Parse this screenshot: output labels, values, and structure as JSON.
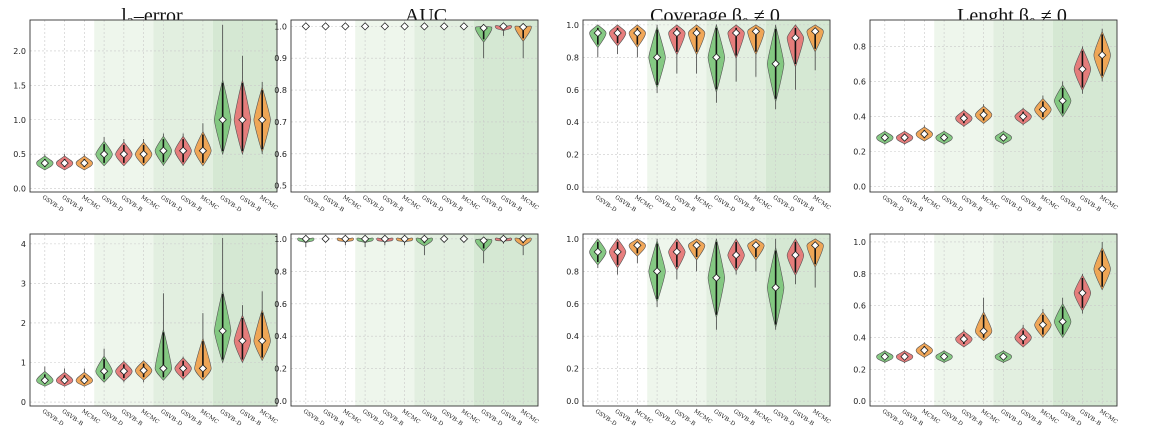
{
  "titles": [
    "l₂–error",
    "AUC",
    "Coverage β₀ ≠ 0",
    "Lenght β₀ ≠ 0"
  ],
  "colors": {
    "GSVB-D": "#7cc47a",
    "GSVB-B": "#e57373",
    "MCMC": "#f0a04b",
    "median": "#ffffff",
    "bg1": "#eef6ec",
    "bg2": "#e2efe0",
    "bg3": "#d5e8d3"
  },
  "chart_data": [
    {
      "type": "violin",
      "row": 0,
      "col": 0,
      "title": "l₂–error",
      "categories": [
        "GSVB–D",
        "GSVB–B",
        "MCMC",
        "GSVB–D",
        "GSVB–B",
        "MCMC",
        "GSVB–D",
        "GSVB–B",
        "MCMC",
        "GSVB–D",
        "GSVB–B",
        "MCMC"
      ],
      "yticks": [
        "0.0",
        "0.5",
        "1.0",
        "1.5",
        "2.0"
      ],
      "ylim": [
        -0.05,
        2.45
      ],
      "medians": [
        0.37,
        0.37,
        0.37,
        0.5,
        0.5,
        0.5,
        0.55,
        0.55,
        0.55,
        1.0,
        1.0,
        1.0
      ],
      "mins": [
        0.27,
        0.27,
        0.27,
        0.33,
        0.33,
        0.33,
        0.33,
        0.33,
        0.33,
        0.5,
        0.5,
        0.5
      ],
      "maxs": [
        0.5,
        0.5,
        0.5,
        0.75,
        0.72,
        0.72,
        0.8,
        0.8,
        0.95,
        2.38,
        1.93,
        1.55
      ]
    },
    {
      "type": "violin",
      "row": 0,
      "col": 1,
      "title": "AUC",
      "categories": [
        "GSVB–D",
        "GSVB–B",
        "MCMC",
        "GSVB–D",
        "GSVB–B",
        "MCMC",
        "GSVB–D",
        "GSVB–B",
        "MCMC",
        "GSVB–D",
        "GSVB–B",
        "MCMC"
      ],
      "yticks": [
        "0.5",
        "0.6",
        "0.7",
        "0.8",
        "0.9",
        "1.0"
      ],
      "ylim": [
        0.48,
        1.02
      ],
      "medians": [
        1.0,
        1.0,
        1.0,
        1.0,
        1.0,
        1.0,
        1.0,
        1.0,
        1.0,
        0.995,
        1.0,
        0.998
      ],
      "mins": [
        0.995,
        0.995,
        0.995,
        0.995,
        0.995,
        0.995,
        0.995,
        0.995,
        0.995,
        0.9,
        0.97,
        0.9
      ],
      "maxs": [
        1.0,
        1.0,
        1.0,
        1.0,
        1.0,
        1.0,
        1.0,
        1.0,
        1.0,
        1.0,
        1.0,
        1.0
      ]
    },
    {
      "type": "violin",
      "row": 0,
      "col": 2,
      "title": "Coverage β₀ ≠ 0",
      "categories": [
        "GSVB–D",
        "GSVB–B",
        "MCMC",
        "GSVB–D",
        "GSVB–B",
        "MCMC",
        "GSVB–D",
        "GSVB–B",
        "MCMC",
        "GSVB–D",
        "GSVB–B",
        "MCMC"
      ],
      "yticks": [
        "0.0",
        "0.2",
        "0.4",
        "0.6",
        "0.8",
        "1.0"
      ],
      "ylim": [
        -0.03,
        1.03
      ],
      "medians": [
        0.95,
        0.95,
        0.95,
        0.8,
        0.95,
        0.95,
        0.8,
        0.95,
        0.96,
        0.76,
        0.92,
        0.96
      ],
      "mins": [
        0.8,
        0.82,
        0.8,
        0.58,
        0.7,
        0.7,
        0.52,
        0.65,
        0.68,
        0.48,
        0.6,
        0.72
      ],
      "maxs": [
        1.0,
        1.0,
        1.0,
        1.0,
        1.0,
        1.0,
        1.0,
        1.0,
        1.0,
        1.0,
        1.0,
        1.0
      ]
    },
    {
      "type": "violin",
      "row": 0,
      "col": 3,
      "title": "Lenght β₀ ≠ 0",
      "categories": [
        "GSVB–D",
        "GSVB–B",
        "MCMC",
        "GSVB–D",
        "GSVB–B",
        "MCMC",
        "GSVB–D",
        "GSVB–B",
        "MCMC",
        "GSVB–D",
        "GSVB–B",
        "MCMC"
      ],
      "yticks": [
        "0.0",
        "0.2",
        "0.4",
        "0.6",
        "0.8"
      ],
      "ylim": [
        -0.03,
        0.95
      ],
      "medians": [
        0.28,
        0.28,
        0.3,
        0.28,
        0.39,
        0.41,
        0.28,
        0.4,
        0.44,
        0.49,
        0.67,
        0.75
      ],
      "mins": [
        0.24,
        0.24,
        0.26,
        0.24,
        0.34,
        0.36,
        0.24,
        0.35,
        0.38,
        0.4,
        0.53,
        0.6
      ],
      "maxs": [
        0.32,
        0.32,
        0.35,
        0.32,
        0.44,
        0.47,
        0.32,
        0.45,
        0.52,
        0.6,
        0.8,
        0.9
      ]
    },
    {
      "type": "violin",
      "row": 1,
      "col": 0,
      "title": "",
      "categories": [
        "GSVB–D",
        "GSVB–B",
        "MCMC",
        "GSVB–D",
        "GSVB–B",
        "MCMC",
        "GSVB–D",
        "GSVB–B",
        "MCMC",
        "GSVB–D",
        "GSVB–B",
        "MCMC"
      ],
      "yticks": [
        "0",
        "1",
        "2",
        "3",
        "4"
      ],
      "ylim": [
        -0.1,
        4.25
      ],
      "medians": [
        0.55,
        0.55,
        0.55,
        0.78,
        0.78,
        0.8,
        0.85,
        0.85,
        0.85,
        1.8,
        1.55,
        1.55
      ],
      "mins": [
        0.4,
        0.4,
        0.4,
        0.5,
        0.5,
        0.5,
        0.55,
        0.55,
        0.55,
        1.0,
        1.0,
        1.05
      ],
      "maxs": [
        0.9,
        0.85,
        0.85,
        1.35,
        1.05,
        1.05,
        2.75,
        1.15,
        2.25,
        4.15,
        2.45,
        2.8
      ]
    },
    {
      "type": "violin",
      "row": 1,
      "col": 1,
      "title": "",
      "categories": [
        "GSVB–D",
        "GSVB–B",
        "MCMC",
        "GSVB–D",
        "GSVB–B",
        "MCMC",
        "GSVB–D",
        "GSVB–B",
        "MCMC",
        "GSVB–D",
        "GSVB–B",
        "MCMC"
      ],
      "yticks": [
        "0.0",
        "0.2",
        "0.4",
        "0.6",
        "0.8",
        "1.0"
      ],
      "ylim": [
        -0.03,
        1.03
      ],
      "medians": [
        1.0,
        1.0,
        1.0,
        1.0,
        1.0,
        1.0,
        1.0,
        1.0,
        1.0,
        0.99,
        1.0,
        1.0
      ],
      "mins": [
        0.95,
        0.99,
        0.96,
        0.95,
        0.96,
        0.96,
        0.9,
        0.99,
        0.99,
        0.85,
        0.97,
        0.9
      ],
      "maxs": [
        1.0,
        1.0,
        1.0,
        1.0,
        1.0,
        1.0,
        1.0,
        1.0,
        1.0,
        1.0,
        1.0,
        1.0
      ]
    },
    {
      "type": "violin",
      "row": 1,
      "col": 2,
      "title": "",
      "categories": [
        "GSVB–D",
        "GSVB–B",
        "MCMC",
        "GSVB–D",
        "GSVB–B",
        "MCMC",
        "GSVB–D",
        "GSVB–B",
        "MCMC",
        "GSVB–D",
        "GSVB–B",
        "MCMC"
      ],
      "yticks": [
        "0.0",
        "0.2",
        "0.4",
        "0.6",
        "0.8",
        "1.0"
      ],
      "ylim": [
        -0.03,
        1.03
      ],
      "medians": [
        0.92,
        0.92,
        0.96,
        0.8,
        0.92,
        0.96,
        0.76,
        0.9,
        0.96,
        0.7,
        0.9,
        0.96
      ],
      "mins": [
        0.82,
        0.78,
        0.85,
        0.58,
        0.75,
        0.8,
        0.44,
        0.78,
        0.8,
        0.44,
        0.72,
        0.7
      ],
      "maxs": [
        1.0,
        1.0,
        1.0,
        1.0,
        1.0,
        1.0,
        1.0,
        1.0,
        1.0,
        1.0,
        1.0,
        1.0
      ]
    },
    {
      "type": "violin",
      "row": 1,
      "col": 3,
      "title": "",
      "categories": [
        "GSVB–D",
        "GSVB–B",
        "MCMC",
        "GSVB–D",
        "GSVB–B",
        "MCMC",
        "GSVB–D",
        "GSVB–B",
        "MCMC",
        "GSVB–D",
        "GSVB–B",
        "MCMC"
      ],
      "yticks": [
        "0.0",
        "0.2",
        "0.4",
        "0.6",
        "0.8",
        "1.0"
      ],
      "ylim": [
        -0.03,
        1.05
      ],
      "medians": [
        0.28,
        0.28,
        0.32,
        0.28,
        0.39,
        0.44,
        0.28,
        0.4,
        0.48,
        0.5,
        0.68,
        0.83
      ],
      "mins": [
        0.24,
        0.24,
        0.27,
        0.24,
        0.34,
        0.38,
        0.24,
        0.34,
        0.4,
        0.4,
        0.55,
        0.7
      ],
      "maxs": [
        0.32,
        0.32,
        0.37,
        0.32,
        0.45,
        0.65,
        0.32,
        0.48,
        0.58,
        0.65,
        0.8,
        1.0
      ]
    }
  ]
}
